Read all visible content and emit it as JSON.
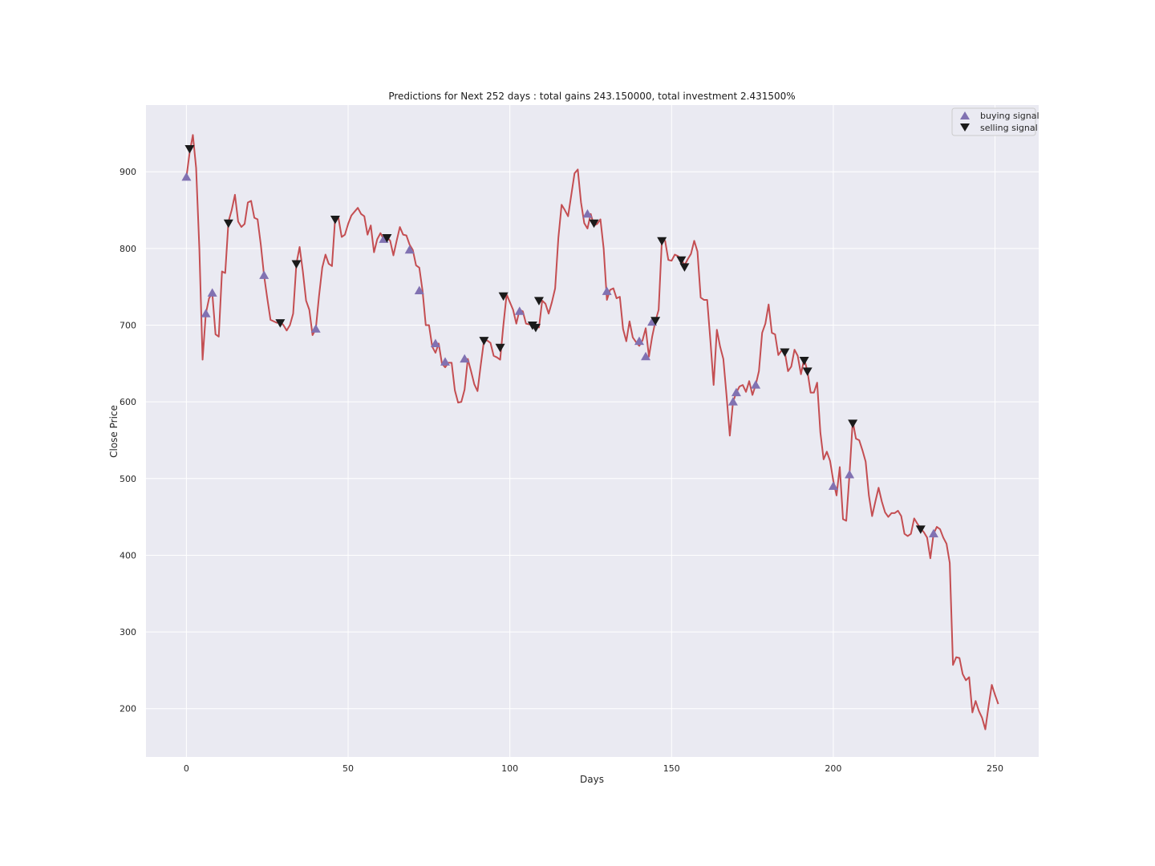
{
  "chart_data": {
    "type": "line",
    "title": "Predictions for Next 252 days : total gains 243.150000, total investment 2.431500%",
    "xlabel": "Days",
    "ylabel": "Close Price",
    "xlim": [
      -12.5,
      263.5
    ],
    "ylim": [
      137,
      987
    ],
    "xticks": [
      0,
      50,
      100,
      150,
      200,
      250
    ],
    "yticks": [
      200,
      300,
      400,
      500,
      600,
      700,
      800,
      900
    ],
    "grid": true,
    "legend_position": "upper right",
    "colors": {
      "background": "#eaeaf2",
      "grid": "#ffffff",
      "line": "#c44e52",
      "buy": "#8172b2",
      "sell": "#1a1a1a"
    },
    "series": [
      {
        "type": "line",
        "x_start": 0,
        "x_step": 1,
        "y": [
          893,
          925,
          948,
          905,
          800,
          655,
          715,
          735,
          742,
          688,
          685,
          770,
          768,
          835,
          850,
          870,
          835,
          828,
          832,
          860,
          862,
          840,
          838,
          805,
          765,
          735,
          707,
          705,
          703,
          705,
          700,
          693,
          700,
          715,
          780,
          802,
          770,
          732,
          720,
          687,
          695,
          738,
          775,
          792,
          780,
          777,
          840,
          840,
          815,
          818,
          832,
          843,
          848,
          853,
          845,
          842,
          818,
          830,
          795,
          812,
          820,
          812,
          815,
          810,
          791,
          810,
          828,
          818,
          817,
          805,
          798,
          778,
          775,
          745,
          700,
          700,
          672,
          664,
          676,
          650,
          645,
          651,
          651,
          615,
          599,
          600,
          616,
          656,
          640,
          623,
          614,
          648,
          680,
          680,
          677,
          660,
          658,
          655,
          700,
          740,
          730,
          720,
          702,
          720,
          718,
          702,
          701,
          703,
          700,
          697,
          732,
          728,
          715,
          730,
          748,
          814,
          857,
          850,
          842,
          870,
          898,
          903,
          860,
          833,
          826,
          845,
          830,
          832,
          838,
          800,
          733,
          746,
          748,
          735,
          737,
          695,
          679,
          705,
          684,
          678,
          673,
          680,
          696,
          659,
          685,
          705,
          720,
          811,
          810,
          785,
          784,
          792,
          790,
          786,
          778,
          786,
          793,
          810,
          796,
          736,
          733,
          733,
          680,
          622,
          694,
          672,
          656,
          608,
          556,
          600,
          612,
          620,
          622,
          613,
          627,
          609,
          622,
          640,
          690,
          702,
          727,
          690,
          688,
          661,
          667,
          665,
          640,
          646,
          668,
          660,
          636,
          656,
          640,
          612,
          612,
          625,
          560,
          525,
          535,
          523,
          497,
          478,
          515,
          447,
          445,
          505,
          575,
          552,
          550,
          537,
          522,
          478,
          451,
          470,
          488,
          470,
          456,
          450,
          455,
          455,
          458,
          451,
          428,
          425,
          428,
          448,
          441,
          435,
          430,
          423,
          396,
          428,
          437,
          434,
          423,
          415,
          390,
          257,
          267,
          266,
          245,
          237,
          241,
          195,
          210,
          197,
          188,
          173,
          203,
          231,
          218,
          206
        ]
      }
    ],
    "buy_signals": [
      {
        "x": 0,
        "y": 893
      },
      {
        "x": 6,
        "y": 715
      },
      {
        "x": 8,
        "y": 742
      },
      {
        "x": 24,
        "y": 765
      },
      {
        "x": 40,
        "y": 695
      },
      {
        "x": 61,
        "y": 812
      },
      {
        "x": 69,
        "y": 798
      },
      {
        "x": 72,
        "y": 745
      },
      {
        "x": 77,
        "y": 676
      },
      {
        "x": 80,
        "y": 652
      },
      {
        "x": 86,
        "y": 656
      },
      {
        "x": 103,
        "y": 718
      },
      {
        "x": 124,
        "y": 845
      },
      {
        "x": 130,
        "y": 744
      },
      {
        "x": 140,
        "y": 679
      },
      {
        "x": 142,
        "y": 659
      },
      {
        "x": 144,
        "y": 704
      },
      {
        "x": 169,
        "y": 600
      },
      {
        "x": 170,
        "y": 612
      },
      {
        "x": 176,
        "y": 622
      },
      {
        "x": 200,
        "y": 490
      },
      {
        "x": 205,
        "y": 505
      },
      {
        "x": 231,
        "y": 428
      }
    ],
    "sell_signals": [
      {
        "x": 1,
        "y": 930
      },
      {
        "x": 13,
        "y": 833
      },
      {
        "x": 29,
        "y": 703
      },
      {
        "x": 34,
        "y": 780
      },
      {
        "x": 46,
        "y": 838
      },
      {
        "x": 62,
        "y": 814
      },
      {
        "x": 92,
        "y": 680
      },
      {
        "x": 97,
        "y": 671
      },
      {
        "x": 98,
        "y": 738
      },
      {
        "x": 107,
        "y": 700
      },
      {
        "x": 108,
        "y": 697
      },
      {
        "x": 109,
        "y": 732
      },
      {
        "x": 126,
        "y": 833
      },
      {
        "x": 145,
        "y": 706
      },
      {
        "x": 147,
        "y": 810
      },
      {
        "x": 153,
        "y": 785
      },
      {
        "x": 154,
        "y": 776
      },
      {
        "x": 185,
        "y": 665
      },
      {
        "x": 191,
        "y": 654
      },
      {
        "x": 192,
        "y": 640
      },
      {
        "x": 206,
        "y": 572
      },
      {
        "x": 227,
        "y": 434
      }
    ],
    "legend": [
      {
        "label": "buying signal",
        "marker": "triangle-up",
        "color": "#8172b2"
      },
      {
        "label": "selling signal",
        "marker": "triangle-down",
        "color": "#1a1a1a"
      }
    ]
  }
}
